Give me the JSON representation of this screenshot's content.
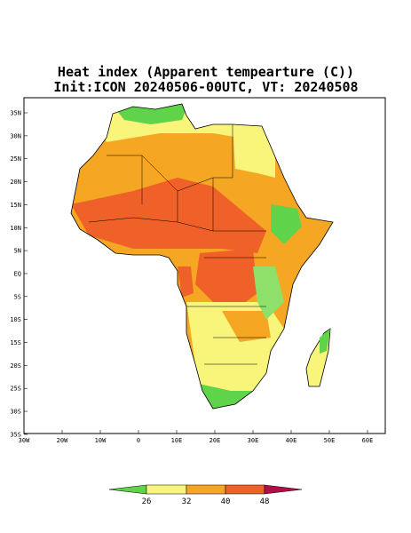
{
  "title": [
    "Heat index (Apparent tempearture (C))",
    "Init:ICON 20240506-00UTC, VT: 20240508"
  ],
  "map": {
    "lat_labels": [
      "35N",
      "30N",
      "25N",
      "20N",
      "15N",
      "10N",
      "5N",
      "EQ",
      "5S",
      "10S",
      "15S",
      "20S",
      "25S",
      "30S",
      "35S"
    ],
    "lon_labels": [
      "30W",
      "20W",
      "10W",
      "0",
      "10E",
      "20E",
      "30E",
      "40E",
      "50E",
      "60E"
    ]
  },
  "legend": {
    "ticks": [
      26,
      32,
      40,
      48
    ]
  }
}
